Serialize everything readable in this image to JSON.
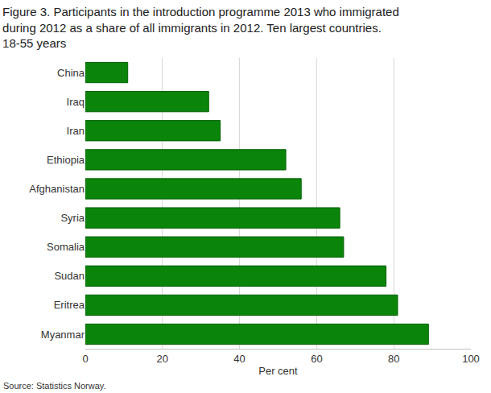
{
  "chart_data": {
    "type": "bar",
    "orientation": "horizontal",
    "title": "Figure 3. Participants in the introduction programme 2013 who immigrated\nduring 2012 as a share of all immigrants in 2012. Ten largest countries.\n18-55 years",
    "x_label": "Per cent",
    "source": "Source: Statistics Norway.",
    "categories": [
      "China",
      "Iraq",
      "Iran",
      "Ethiopia",
      "Afghanistan",
      "Syria",
      "Somalia",
      "Sudan",
      "Eritrea",
      "Myanmar"
    ],
    "values": [
      11,
      32,
      35,
      52,
      56,
      66,
      67,
      78,
      81,
      89
    ],
    "color": "#0a850a",
    "xlim": [
      0,
      100
    ],
    "xticks": [
      0,
      20,
      40,
      60,
      80,
      100
    ],
    "grid": true
  }
}
